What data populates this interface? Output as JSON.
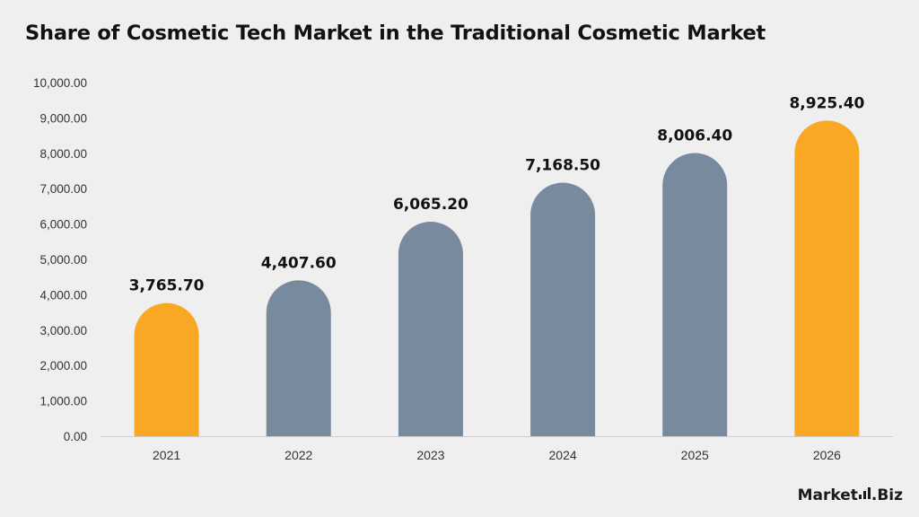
{
  "chart_data": {
    "type": "bar",
    "title": "Share of Cosmetic Tech Market in the Traditional Cosmetic Market",
    "categories": [
      "2021",
      "2022",
      "2023",
      "2024",
      "2025",
      "2026"
    ],
    "values": [
      3765.7,
      4407.6,
      6065.2,
      7168.5,
      8006.4,
      8925.4
    ],
    "data_labels": [
      "3,765.70",
      "4,407.60",
      "6,065.20",
      "7,168.50",
      "8,006.40",
      "8,925.40"
    ],
    "ylim": [
      0,
      10000
    ],
    "yticks": [
      0,
      1000,
      2000,
      3000,
      4000,
      5000,
      6000,
      7000,
      8000,
      9000,
      10000
    ],
    "ytick_labels": [
      "0.00",
      "1,000.00",
      "2,000.00",
      "3,000.00",
      "4,000.00",
      "5,000.00",
      "6,000.00",
      "7,000.00",
      "8,000.00",
      "9,000.00",
      "10,000.00"
    ],
    "xlabel": "",
    "ylabel": "",
    "grid": false,
    "legend": "none",
    "colors": {
      "highlight": "#f9a825",
      "default": "#778a9e",
      "highlighted_categories": [
        "2021",
        "2026"
      ]
    }
  },
  "brand": {
    "logo_left": "Market",
    "logo_right": ".Biz"
  }
}
